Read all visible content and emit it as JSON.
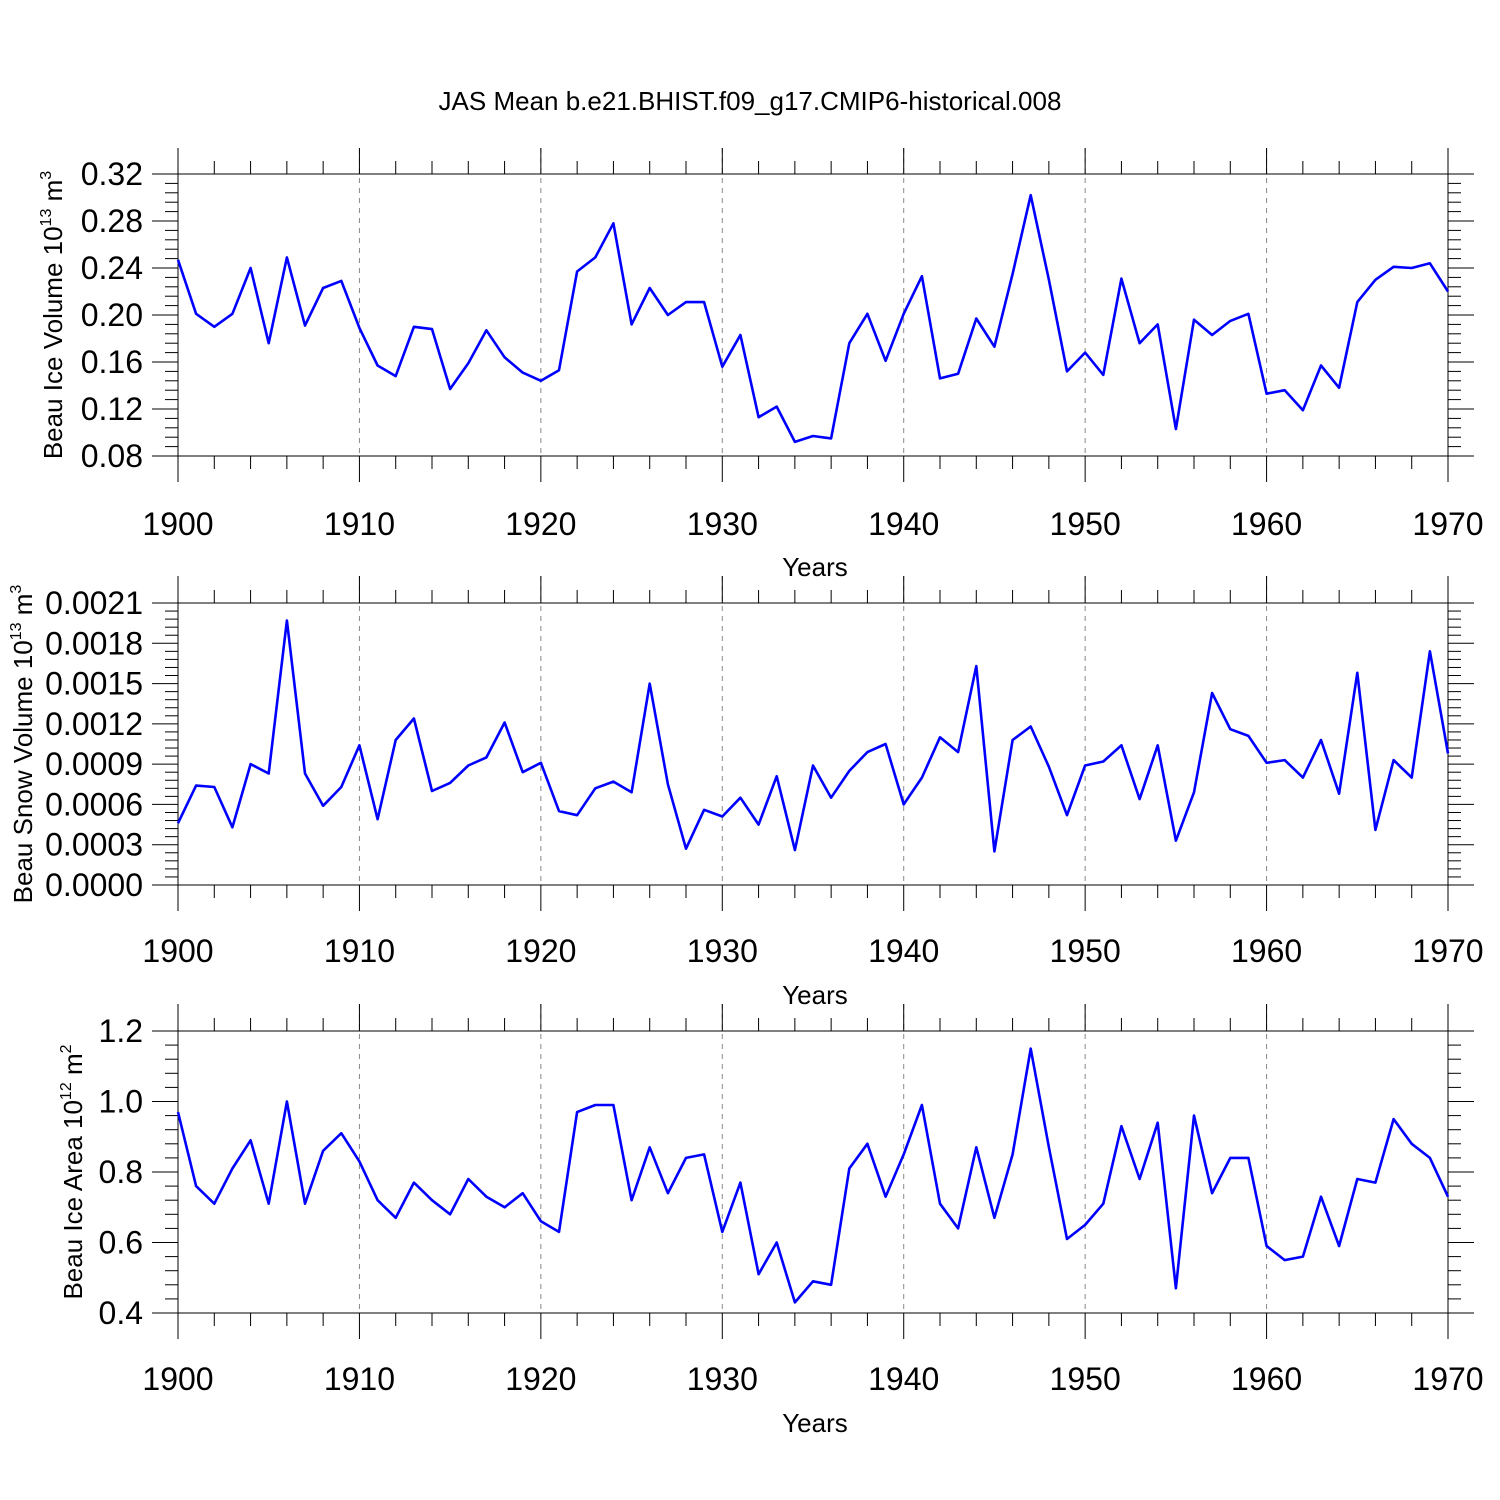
{
  "title": "JAS Mean b.e21.BHIST.f09_g17.CMIP6-historical.008",
  "colors": {
    "line": "#0000ff",
    "grid": "#888888",
    "axis": "#000000"
  },
  "chart_data": [
    {
      "type": "line",
      "name": "ice-volume",
      "ylabel_prefix": "Beau Ice Volume 10",
      "ylabel_exp": "13",
      "ylabel_unit": " m",
      "ylabel_unit_exp": "3",
      "xlabel": "Years",
      "xlim": [
        1900,
        1970
      ],
      "ylim": [
        0.08,
        0.32
      ],
      "yticks": [
        0.08,
        0.12,
        0.16,
        0.2,
        0.24,
        0.28,
        0.32
      ],
      "ytick_labels": [
        "0.08",
        "0.12",
        "0.16",
        "0.20",
        "0.24",
        "0.28",
        "0.32"
      ],
      "xticks": [
        1900,
        1910,
        1920,
        1930,
        1940,
        1950,
        1960,
        1970
      ],
      "xtick_labels": [
        "1900",
        "1910",
        "1920",
        "1930",
        "1940",
        "1950",
        "1960",
        "1970"
      ],
      "x_start": 1900,
      "values": [
        0.247,
        0.201,
        0.19,
        0.201,
        0.24,
        0.176,
        0.249,
        0.191,
        0.223,
        0.229,
        0.189,
        0.157,
        0.148,
        0.19,
        0.188,
        0.137,
        0.159,
        0.187,
        0.164,
        0.151,
        0.144,
        0.153,
        0.237,
        0.249,
        0.278,
        0.192,
        0.223,
        0.2,
        0.211,
        0.211,
        0.156,
        0.183,
        0.113,
        0.122,
        0.092,
        0.097,
        0.095,
        0.176,
        0.201,
        0.161,
        0.201,
        0.233,
        0.146,
        0.15,
        0.197,
        0.173,
        0.235,
        0.302,
        0.23,
        0.152,
        0.168,
        0.149,
        0.231,
        0.176,
        0.192,
        0.103,
        0.196,
        0.183,
        0.195,
        0.201,
        0.133,
        0.136,
        0.119,
        0.157,
        0.138,
        0.211,
        0.23,
        0.241,
        0.24,
        0.244,
        0.22
      ]
    },
    {
      "type": "line",
      "name": "snow-volume",
      "ylabel_prefix": "Beau Snow Volume 10",
      "ylabel_exp": "13",
      "ylabel_unit": " m",
      "ylabel_unit_exp": "3",
      "xlabel": "Years",
      "xlim": [
        1900,
        1970
      ],
      "ylim": [
        0.0,
        0.0021
      ],
      "yticks": [
        0.0,
        0.0003,
        0.0006,
        0.0009,
        0.0012,
        0.0015,
        0.0018,
        0.0021
      ],
      "ytick_labels": [
        "0.0000",
        "0.0003",
        "0.0006",
        "0.0009",
        "0.0012",
        "0.0015",
        "0.0018",
        "0.0021"
      ],
      "xticks": [
        1900,
        1910,
        1920,
        1930,
        1940,
        1950,
        1960,
        1970
      ],
      "xtick_labels": [
        "1900",
        "1910",
        "1920",
        "1930",
        "1940",
        "1950",
        "1960",
        "1970"
      ],
      "x_start": 1900,
      "values": [
        0.00046,
        0.00074,
        0.00073,
        0.00043,
        0.0009,
        0.00083,
        0.00197,
        0.00083,
        0.00059,
        0.00073,
        0.00104,
        0.00049,
        0.00108,
        0.00124,
        0.0007,
        0.00076,
        0.00089,
        0.00095,
        0.00121,
        0.00084,
        0.00091,
        0.00055,
        0.00052,
        0.00072,
        0.00077,
        0.00069,
        0.0015,
        0.00075,
        0.00027,
        0.00056,
        0.00051,
        0.00065,
        0.00045,
        0.00081,
        0.00026,
        0.00089,
        0.00065,
        0.00085,
        0.00099,
        0.00105,
        0.0006,
        0.0008,
        0.0011,
        0.00099,
        0.00163,
        0.00025,
        0.00108,
        0.00118,
        0.00088,
        0.00052,
        0.00089,
        0.00092,
        0.00104,
        0.00064,
        0.00104,
        0.00033,
        0.00069,
        0.00143,
        0.00116,
        0.00111,
        0.00091,
        0.00093,
        0.0008,
        0.00108,
        0.00068,
        0.00158,
        0.00041,
        0.00093,
        0.0008,
        0.00174,
        0.00098
      ]
    },
    {
      "type": "line",
      "name": "ice-area",
      "ylabel_prefix": "Beau Ice Area 10",
      "ylabel_exp": "12",
      "ylabel_unit": " m",
      "ylabel_unit_exp": "2",
      "xlabel": "Years",
      "xlim": [
        1900,
        1970
      ],
      "ylim": [
        0.4,
        1.2
      ],
      "yticks": [
        0.4,
        0.6,
        0.8,
        1.0,
        1.2
      ],
      "ytick_labels": [
        "0.4",
        "0.6",
        "0.8",
        "1.0",
        "1.2"
      ],
      "xticks": [
        1900,
        1910,
        1920,
        1930,
        1940,
        1950,
        1960,
        1970
      ],
      "xtick_labels": [
        "1900",
        "1910",
        "1920",
        "1930",
        "1940",
        "1950",
        "1960",
        "1970"
      ],
      "x_start": 1900,
      "values": [
        0.97,
        0.76,
        0.71,
        0.81,
        0.89,
        0.71,
        1.0,
        0.71,
        0.86,
        0.91,
        0.83,
        0.72,
        0.67,
        0.77,
        0.72,
        0.68,
        0.78,
        0.73,
        0.7,
        0.74,
        0.66,
        0.63,
        0.97,
        0.99,
        0.99,
        0.72,
        0.87,
        0.74,
        0.84,
        0.85,
        0.63,
        0.77,
        0.51,
        0.6,
        0.43,
        0.49,
        0.48,
        0.81,
        0.88,
        0.73,
        0.85,
        0.99,
        0.71,
        0.64,
        0.87,
        0.67,
        0.85,
        1.15,
        0.87,
        0.61,
        0.65,
        0.71,
        0.93,
        0.78,
        0.94,
        0.47,
        0.96,
        0.74,
        0.84,
        0.84,
        0.59,
        0.55,
        0.56,
        0.73,
        0.59,
        0.78,
        0.77,
        0.95,
        0.88,
        0.84,
        0.73
      ]
    }
  ]
}
